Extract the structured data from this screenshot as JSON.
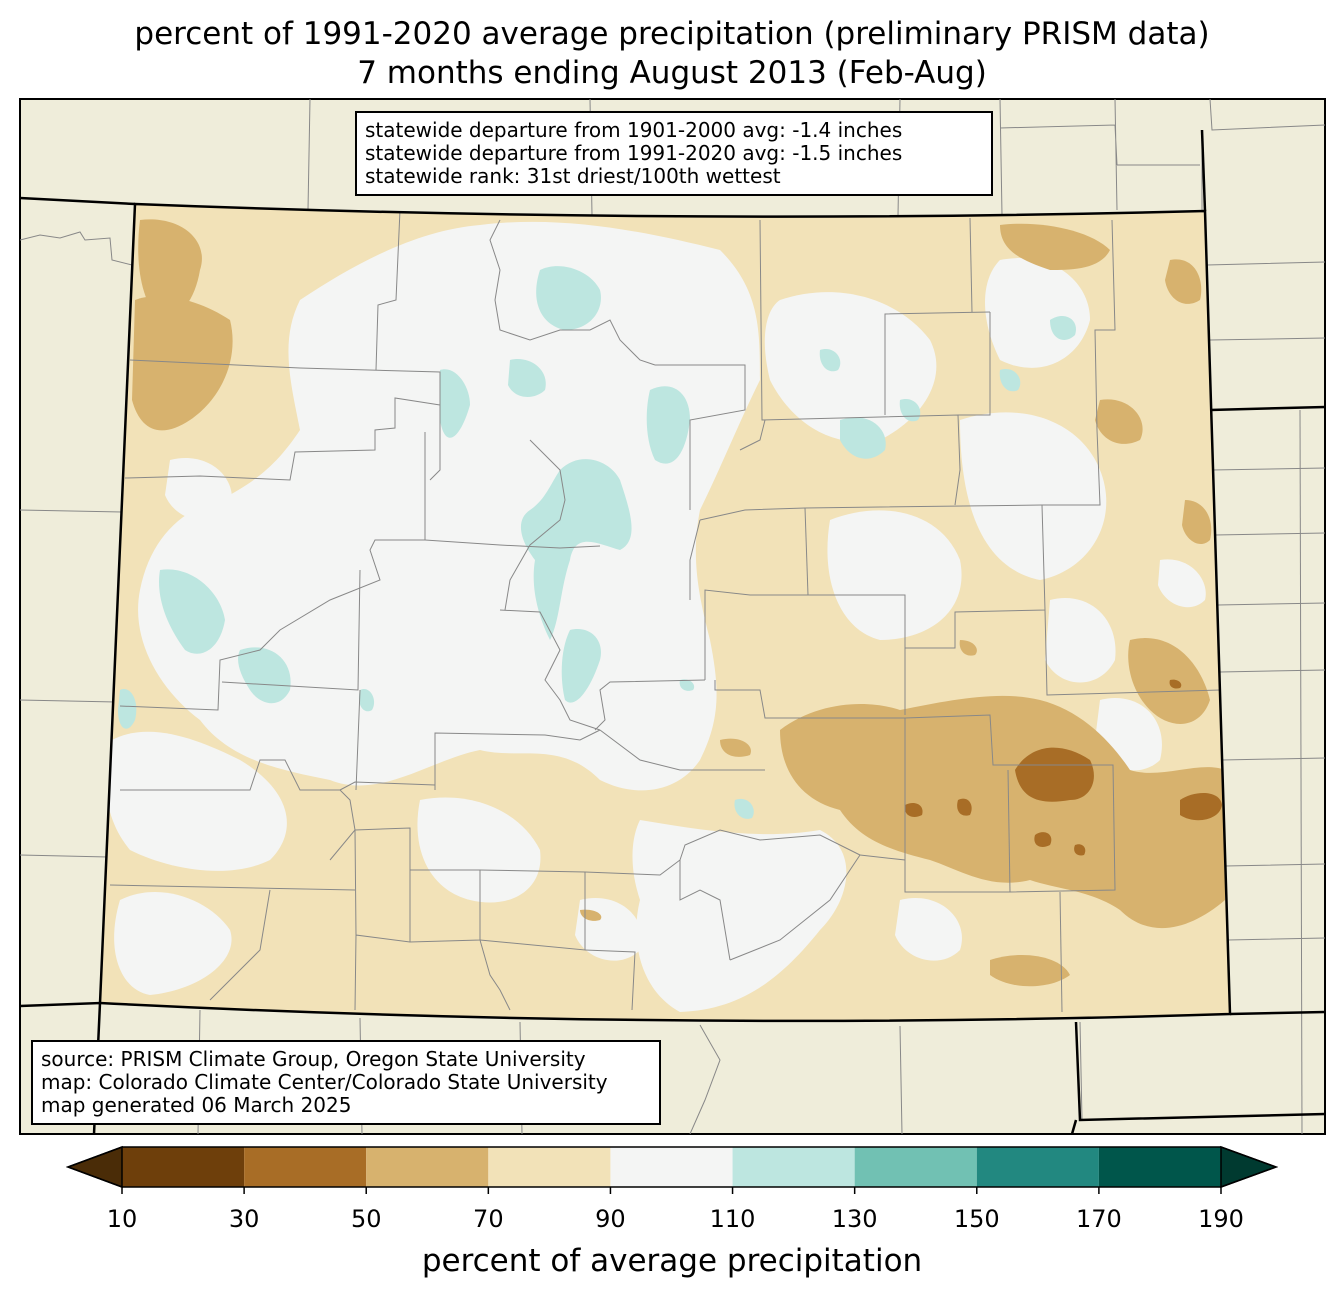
{
  "title": {
    "line1": "percent of 1991-2020 average precipitation (preliminary PRISM data)",
    "line2": "7 months ending August 2013 (Feb-Aug)"
  },
  "stats": {
    "line1": "statewide departure from 1901-2000 avg: -1.4 inches",
    "line2": "statewide departure from 1991-2020 avg: -1.5 inches",
    "line3": "statewide rank: 31st driest/100th wettest"
  },
  "source": {
    "line1": "source: PRISM Climate Group, Oregon State University",
    "line2": "map: Colorado Climate Center/Colorado State University",
    "line3": "map generated 06 March 2025"
  },
  "colorbar": {
    "label": "percent of average precipitation",
    "ticks": [
      "10",
      "30",
      "50",
      "70",
      "90",
      "110",
      "130",
      "150",
      "170",
      "190"
    ],
    "bins": [
      {
        "range": "10-30",
        "color": "#6e3f0b"
      },
      {
        "range": "30-50",
        "color": "#a86d26"
      },
      {
        "range": "50-70",
        "color": "#d7b26e"
      },
      {
        "range": "70-90",
        "color": "#f2e2b8"
      },
      {
        "range": "90-110",
        "color": "#f4f5f4"
      },
      {
        "range": "110-130",
        "color": "#bde6e0"
      },
      {
        "range": "130-150",
        "color": "#71c1b3"
      },
      {
        "range": "150-170",
        "color": "#228880"
      },
      {
        "range": "170-190",
        "color": "#00564b"
      }
    ],
    "under_color": "#4a2c07",
    "over_color": "#003a30"
  },
  "colors": {
    "land": "#efedda",
    "county_line": "#888888",
    "state_line": "#000000"
  }
}
